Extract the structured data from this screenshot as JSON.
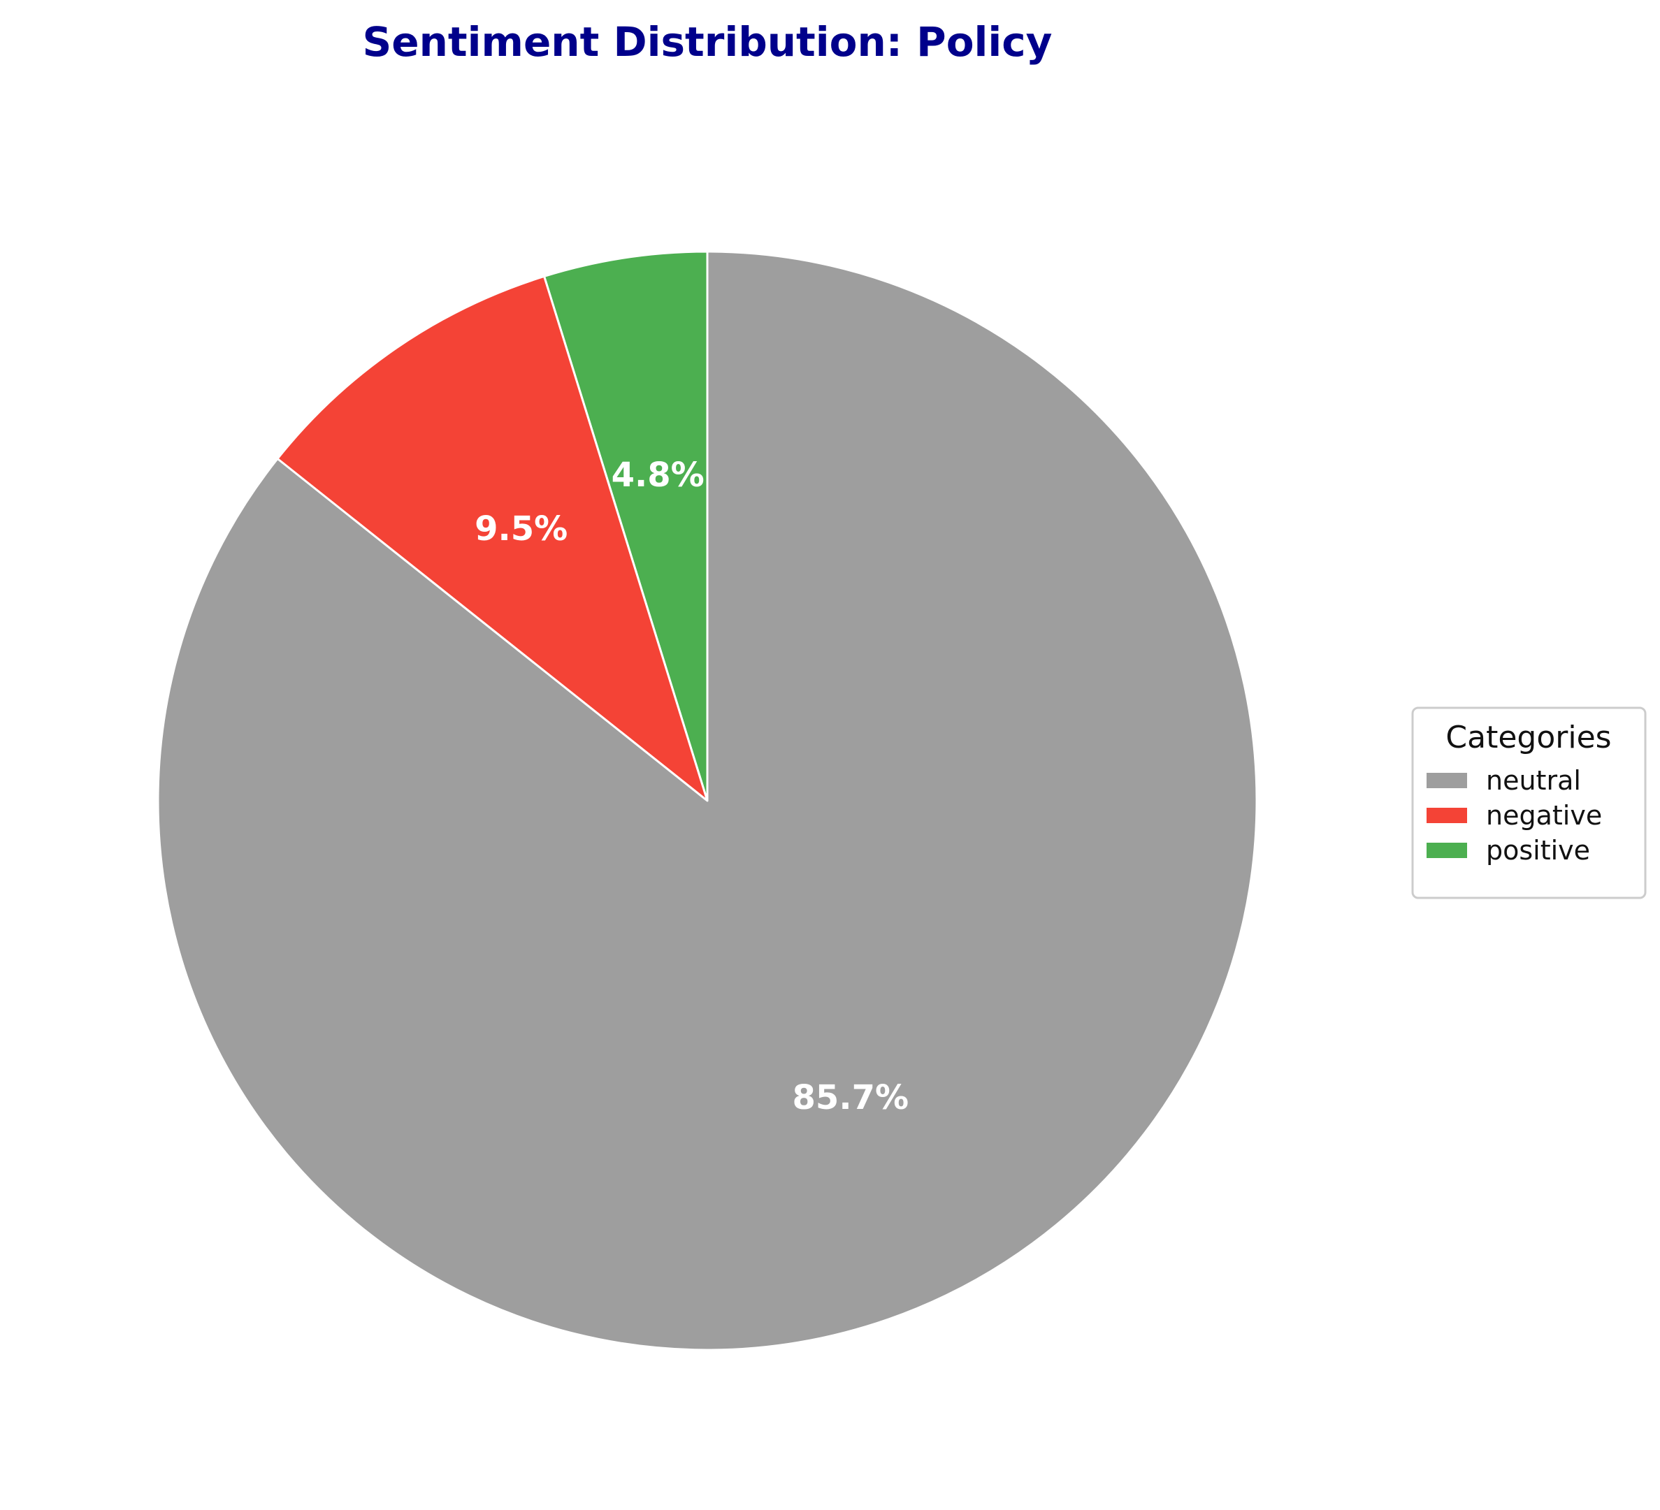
{
  "chart_data": {
    "type": "pie",
    "title": "Sentiment Distribution: Policy",
    "slices": [
      {
        "label": "neutral",
        "value": 85.7,
        "display": "85.7%",
        "color": "#9e9e9e"
      },
      {
        "label": "negative",
        "value": 9.5,
        "display": "9.5%",
        "color": "#f44336"
      },
      {
        "label": "positive",
        "value": 4.8,
        "display": "4.8%",
        "color": "#4caf50"
      }
    ],
    "slice_order": "counterclockwise from top: positive, negative, neutral",
    "legend": {
      "title": "Categories",
      "placement": "right",
      "items": [
        "neutral",
        "negative",
        "positive"
      ]
    }
  },
  "colors": {
    "title": "#00008b",
    "slice_edge": "#ffffff",
    "slice_label": "#ffffff",
    "legend_border": "#cccccc"
  }
}
